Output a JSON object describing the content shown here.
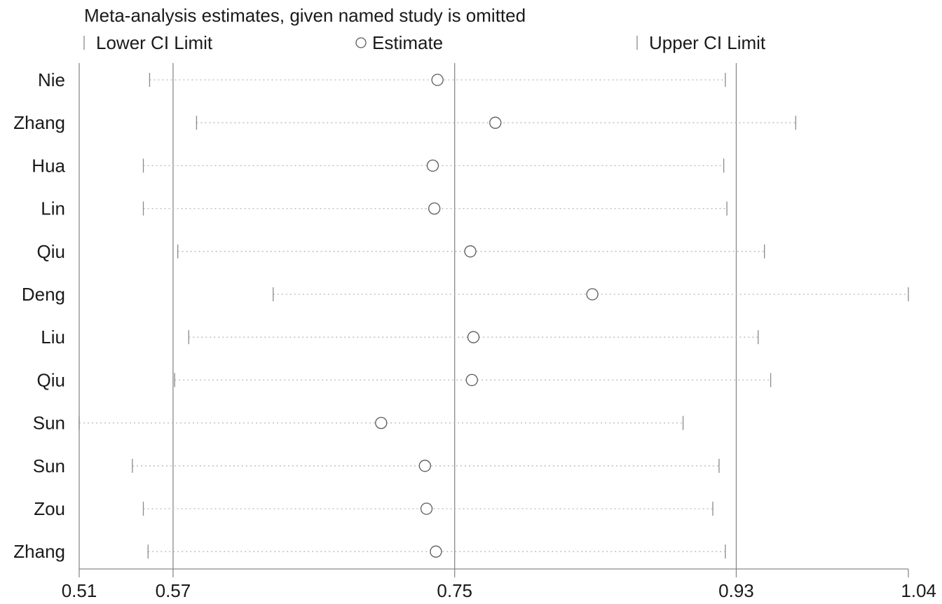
{
  "chart_data": {
    "type": "scatter",
    "title": "Meta-analysis estimates, given named study is omitted",
    "legend": {
      "placement": "top",
      "items": [
        {
          "label": "Lower CI Limit",
          "marker": "tick"
        },
        {
          "label": "Estimate",
          "marker": "circle"
        },
        {
          "label": "Upper CI Limit",
          "marker": "tick"
        }
      ]
    },
    "x_ticks": [
      "0.51",
      "0.57",
      "0.75",
      "0.93",
      "1.04"
    ],
    "xlim": [
      0.51,
      1.04
    ],
    "reference_lines": [
      0.57,
      0.75,
      0.93
    ],
    "studies": [
      {
        "label": "Nie",
        "lower": 0.555,
        "estimate": 0.739,
        "upper": 0.923
      },
      {
        "label": "Zhang",
        "lower": 0.585,
        "estimate": 0.776,
        "upper": 0.968
      },
      {
        "label": "Hua",
        "lower": 0.551,
        "estimate": 0.736,
        "upper": 0.922
      },
      {
        "label": "Lin",
        "lower": 0.551,
        "estimate": 0.737,
        "upper": 0.924
      },
      {
        "label": "Qiu",
        "lower": 0.573,
        "estimate": 0.76,
        "upper": 0.948
      },
      {
        "label": "Deng",
        "lower": 0.634,
        "estimate": 0.838,
        "upper": 1.04
      },
      {
        "label": "Liu",
        "lower": 0.58,
        "estimate": 0.762,
        "upper": 0.944
      },
      {
        "label": "Qiu",
        "lower": 0.571,
        "estimate": 0.761,
        "upper": 0.952
      },
      {
        "label": "Sun",
        "lower": 0.51,
        "estimate": 0.703,
        "upper": 0.896
      },
      {
        "label": "Sun",
        "lower": 0.544,
        "estimate": 0.731,
        "upper": 0.919
      },
      {
        "label": "Zou",
        "lower": 0.551,
        "estimate": 0.732,
        "upper": 0.915
      },
      {
        "label": "Zhang",
        "lower": 0.554,
        "estimate": 0.738,
        "upper": 0.923
      }
    ]
  },
  "colors": {
    "axis": "#8a8a8a",
    "reference_line": "#8a8a8a",
    "dotted_line": "#b8b8b8",
    "marker_stroke": "#5a5a5a",
    "text": "#1a1a1a"
  }
}
